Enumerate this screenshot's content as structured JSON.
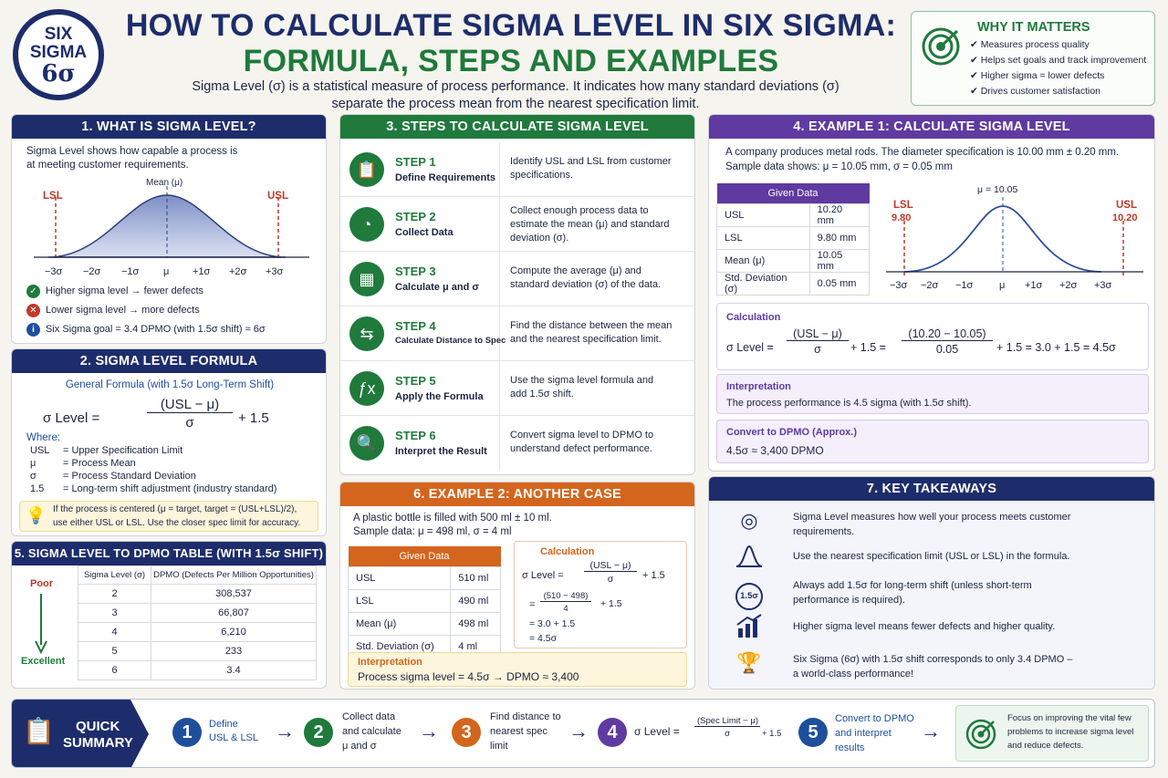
{
  "logo": {
    "line1": "SIX",
    "line2": "SIGMA",
    "line3": "6σ"
  },
  "header": {
    "title1": "HOW TO CALCULATE SIGMA LEVEL IN SIX SIGMA:",
    "title2": "FORMULA, STEPS AND EXAMPLES",
    "sub1": "Sigma Level (σ) is a statistical measure of process performance. It indicates how many standard deviations (σ)",
    "sub2": "separate the process mean from the nearest specification limit."
  },
  "why": {
    "title": "WHY IT MATTERS",
    "items": [
      "Measures process quality",
      "Helps set goals and track improvement",
      "Higher sigma = lower defects",
      "Drives customer satisfaction"
    ]
  },
  "s1": {
    "title": "1. WHAT IS SIGMA LEVEL?",
    "desc1": "Sigma Level shows how capable a process is",
    "desc2": "at meeting customer requirements.",
    "mean": "Mean (μ)",
    "lsl": "LSL",
    "usl": "USL",
    "ticks": [
      "−3σ",
      "−2σ",
      "−1σ",
      "μ",
      "+1σ",
      "+2σ",
      "+3σ"
    ],
    "b1": "Higher sigma level → fewer defects",
    "b2": "Lower sigma level → more defects",
    "b3": "Six Sigma goal = 3.4 DPMO (with 1.5σ shift) ≈ 6σ"
  },
  "s2": {
    "title": "2. SIGMA LEVEL FORMULA",
    "general": "General Formula (with 1.5σ Long-Term Shift)",
    "lhs": "σ Level  =",
    "num": "(USL − μ)",
    "den": "σ",
    "plus": "+  1.5",
    "where": "Where:",
    "defs": [
      [
        "USL",
        "=  Upper Specification Limit"
      ],
      [
        "μ",
        "=  Process Mean"
      ],
      [
        "σ",
        "=  Process Standard Deviation"
      ],
      [
        "1.5",
        "=  Long-term shift adjustment (industry standard)"
      ]
    ],
    "note1": "If the process is centered (μ = target, target = (USL+LSL)/2),",
    "note2": "use either USL or LSL. Use the closer spec limit for accuracy."
  },
  "s5": {
    "title": "5. SIGMA LEVEL TO DPMO TABLE (WITH 1.5σ SHIFT)",
    "poor": "Poor",
    "excellent": "Excellent",
    "h1": "Sigma Level (σ)",
    "h2": "DPMO (Defects Per Million Opportunities)",
    "rows": [
      [
        "2",
        "308,537"
      ],
      [
        "3",
        "66,807"
      ],
      [
        "4",
        "6,210"
      ],
      [
        "5",
        "233"
      ],
      [
        "6",
        "3.4"
      ]
    ]
  },
  "s3": {
    "title": "3. STEPS TO CALCULATE SIGMA LEVEL",
    "steps": [
      {
        "n": "STEP 1",
        "t": "Define Requirements",
        "d1": "Identify USL and LSL from customer",
        "d2": "specifications.",
        "d3": ""
      },
      {
        "n": "STEP 2",
        "t": "Collect Data",
        "d1": "Collect enough process data to",
        "d2": "estimate the mean (μ) and standard",
        "d3": "deviation (σ)."
      },
      {
        "n": "STEP 3",
        "t": "Calculate μ and σ",
        "d1": "Compute the average (μ) and",
        "d2": "standard deviation (σ) of the data.",
        "d3": ""
      },
      {
        "n": "STEP 4",
        "t": "Calculate Distance to Spec",
        "d1": "Find the distance between the mean",
        "d2": "and the nearest specification limit.",
        "d3": ""
      },
      {
        "n": "STEP 5",
        "t": "Apply the Formula",
        "d1": "Use the sigma level formula and",
        "d2": "add 1.5σ shift.",
        "d3": ""
      },
      {
        "n": "STEP 6",
        "t": "Interpret the Result",
        "d1": "Convert sigma level to DPMO to",
        "d2": "understand defect performance.",
        "d3": ""
      }
    ]
  },
  "s4": {
    "title": "4. EXAMPLE 1: CALCULATE SIGMA LEVEL",
    "desc1": "A company produces metal rods. The diameter specification is 10.00 mm ± 0.20 mm.",
    "desc2": "Sample data shows:  μ = 10.05 mm,    σ = 0.05 mm",
    "given": "Given Data",
    "rows": [
      [
        "USL",
        "10.20 mm"
      ],
      [
        "LSL",
        "9.80 mm"
      ],
      [
        "Mean (μ)",
        "10.05 mm"
      ],
      [
        "Std. Deviation (σ)",
        "0.05 mm"
      ]
    ],
    "mu": "μ = 10.05",
    "lsl": "LSL",
    "lslv": "9.80",
    "usl": "USL",
    "uslv": "10.20",
    "ticks": [
      "−3σ",
      "−2σ",
      "−1σ",
      "μ",
      "+1σ",
      "+2σ",
      "+3σ"
    ],
    "calc": "Calculation",
    "lhs": "σ Level  =",
    "n1": "(USL − μ)",
    "d1": "σ",
    "p1": "+  1.5  =",
    "n2": "(10.20 − 10.05)",
    "d2": "0.05",
    "p2": "+  1.5   =  3.0  +  1.5   =  4.5σ",
    "interp": "Interpretation",
    "interpText": "The process performance is 4.5 sigma (with 1.5σ shift).",
    "convert": "Convert to DPMO (Approx.)",
    "convertText": "4.5σ  ≈  3,400 DPMO"
  },
  "s6": {
    "title": "6. EXAMPLE 2: ANOTHER CASE",
    "desc1": "A plastic bottle is filled with 500 ml ± 10 ml.",
    "desc2": "Sample data:  μ = 498 ml,    σ = 4 ml",
    "given": "Given Data",
    "rows": [
      [
        "USL",
        "510 ml"
      ],
      [
        "LSL",
        "490 ml"
      ],
      [
        "Mean (μ)",
        "498 ml"
      ],
      [
        "Std. Deviation (σ)",
        "4 ml"
      ]
    ],
    "calc": "Calculation",
    "lhs": "σ Level  =",
    "n1": "(USL − μ)",
    "d1": "σ",
    "p1": "+  1.5",
    "eq": "=",
    "n2": "(510 − 498)",
    "d2": "4",
    "p2": "+  1.5",
    "l3": "=  3.0  +  1.5",
    "l4": "=  4.5σ",
    "interp": "Interpretation",
    "interpText": "Process sigma level  =  4.5σ     →    DPMO  ≈  3,400"
  },
  "s7": {
    "title": "7. KEY TAKEAWAYS",
    "items": [
      {
        "a": "Sigma Level measures how well your process meets customer",
        "b": "requirements."
      },
      {
        "a": "Use the nearest specification limit (USL or LSL) in the formula.",
        "b": ""
      },
      {
        "a": "Always add 1.5σ for long-term shift (unless short-term",
        "b": "performance is required)."
      },
      {
        "a": "Higher sigma level means fewer defects and higher quality.",
        "b": ""
      },
      {
        "a": "Six Sigma (6σ) with 1.5σ shift corresponds to only 3.4 DPMO –",
        "b": "a world-class performance!"
      }
    ],
    "icon3": "1.5σ"
  },
  "summary": {
    "label1": "QUICK",
    "label2": "SUMMARY",
    "s1a": "Define",
    "s1b": "USL & LSL",
    "s2a": "Collect data",
    "s2b": "and calculate",
    "s2c": "μ and σ",
    "s3a": "Find distance to",
    "s3b": "nearest spec",
    "s3c": "limit",
    "s4lhs": "σ Level  =",
    "s4n": "(Spec Limit − μ)",
    "s4d": "σ",
    "s4p": "+ 1.5",
    "s5a": "Convert to DPMO",
    "s5b": "and interpret",
    "s5c": "results",
    "tip1": "Focus on improving the vital few",
    "tip2": "problems to increase sigma level",
    "tip3": "and reduce defects.",
    "nums": [
      "1",
      "2",
      "3",
      "4",
      "5"
    ]
  },
  "colors": {
    "navy": "#1d2d6b",
    "green": "#1f7a3c",
    "purple": "#5f3aa0",
    "orange": "#d4651d",
    "red": "#c0392b"
  }
}
